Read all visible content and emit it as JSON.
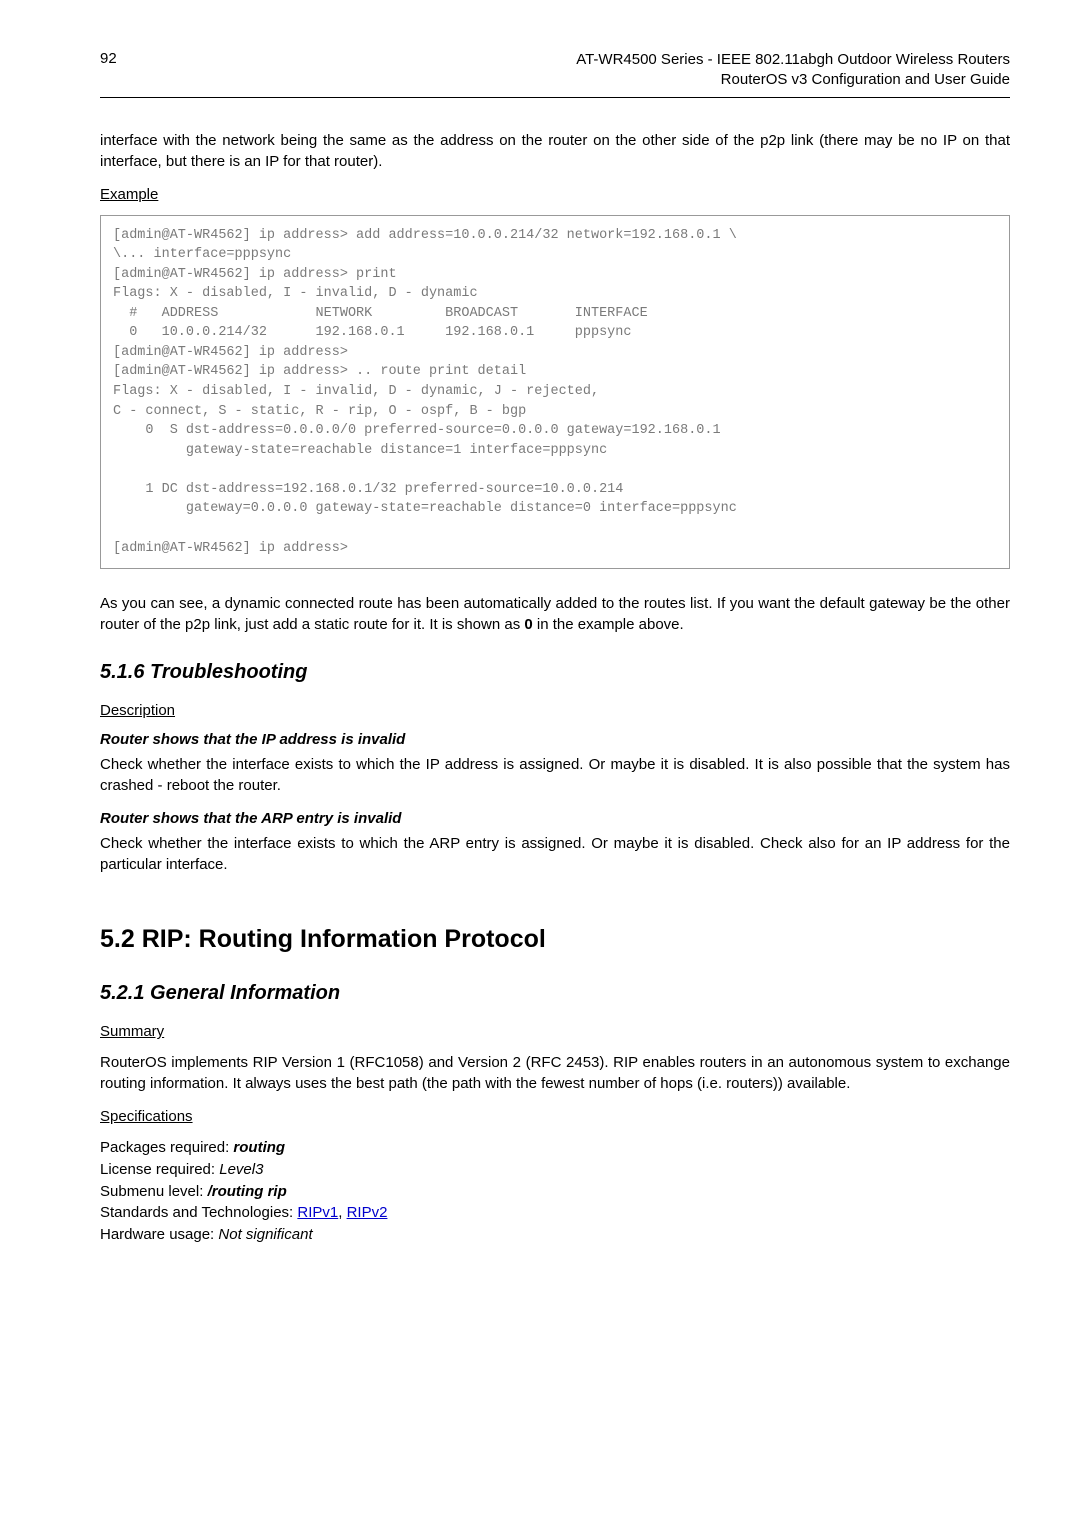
{
  "header": {
    "page_num": "92",
    "line1": "AT-WR4500 Series - IEEE 802.11abgh Outdoor Wireless Routers",
    "line2": "RouterOS v3 Configuration and User Guide"
  },
  "intro_para": "interface with the network being the same as the address on the router on the other side of the p2p link (there may be no IP on that interface, but there is an IP for that router).",
  "example_label": "Example",
  "code1": "[admin@AT-WR4562] ip address> add address=10.0.0.214/32 network=192.168.0.1 \\\n\\... interface=pppsync\n[admin@AT-WR4562] ip address> print\nFlags: X - disabled, I - invalid, D - dynamic\n  #   ADDRESS            NETWORK         BROADCAST       INTERFACE\n  0   10.0.0.214/32      192.168.0.1     192.168.0.1     pppsync\n[admin@AT-WR4562] ip address>\n[admin@AT-WR4562] ip address> .. route print detail\nFlags: X - disabled, I - invalid, D - dynamic, J - rejected,\nC - connect, S - static, R - rip, O - ospf, B - bgp\n    0  S dst-address=0.0.0.0/0 preferred-source=0.0.0.0 gateway=192.168.0.1\n         gateway-state=reachable distance=1 interface=pppsync\n\n    1 DC dst-address=192.168.0.1/32 preferred-source=10.0.0.214\n         gateway=0.0.0.0 gateway-state=reachable distance=0 interface=pppsync\n\n[admin@AT-WR4562] ip address>",
  "after_code_para_1": "As you can see, a dynamic connected route has been automatically added to the routes list. If you want the default gateway be the other router of the p2p link, just add a static route for it. It is shown as ",
  "after_code_bold": "0",
  "after_code_para_2": " in the example above.",
  "troubleshoot_h": "5.1.6  Troubleshooting",
  "desc_label": "Description",
  "ts1_h": "Router shows that the IP address is invalid",
  "ts1_p": "Check whether the interface exists to which the IP address is assigned. Or maybe it is disabled. It is also possible that the system has crashed - reboot the router.",
  "ts2_h": "Router shows that the ARP entry is invalid",
  "ts2_p": "Check whether the interface exists to which the ARP entry is assigned. Or maybe it is disabled. Check also for an IP address for the particular interface.",
  "rip_h": "5.2  RIP: Routing Information Protocol",
  "gen_h": "5.2.1  General Information",
  "summary_label": "Summary",
  "summary_p": " RouterOS implements RIP Version 1 (RFC1058) and Version 2 (RFC 2453). RIP enables routers in an autonomous system to exchange routing information. It always uses the best path (the path with the fewest number of hops (i.e. routers)) available.",
  "spec_label": "Specifications",
  "spec": {
    "l1a": "Packages required: ",
    "l1b": "routing",
    "l2a": "License required: ",
    "l2b": "Level3",
    "l3a": "Submenu level: ",
    "l3b": "/routing rip",
    "l4a": "Standards and Technologies: ",
    "l4link1": "RIPv1",
    "l4sep": ", ",
    "l4link2": "RIPv2",
    "l5a": "Hardware usage: ",
    "l5b": "Not significant"
  }
}
